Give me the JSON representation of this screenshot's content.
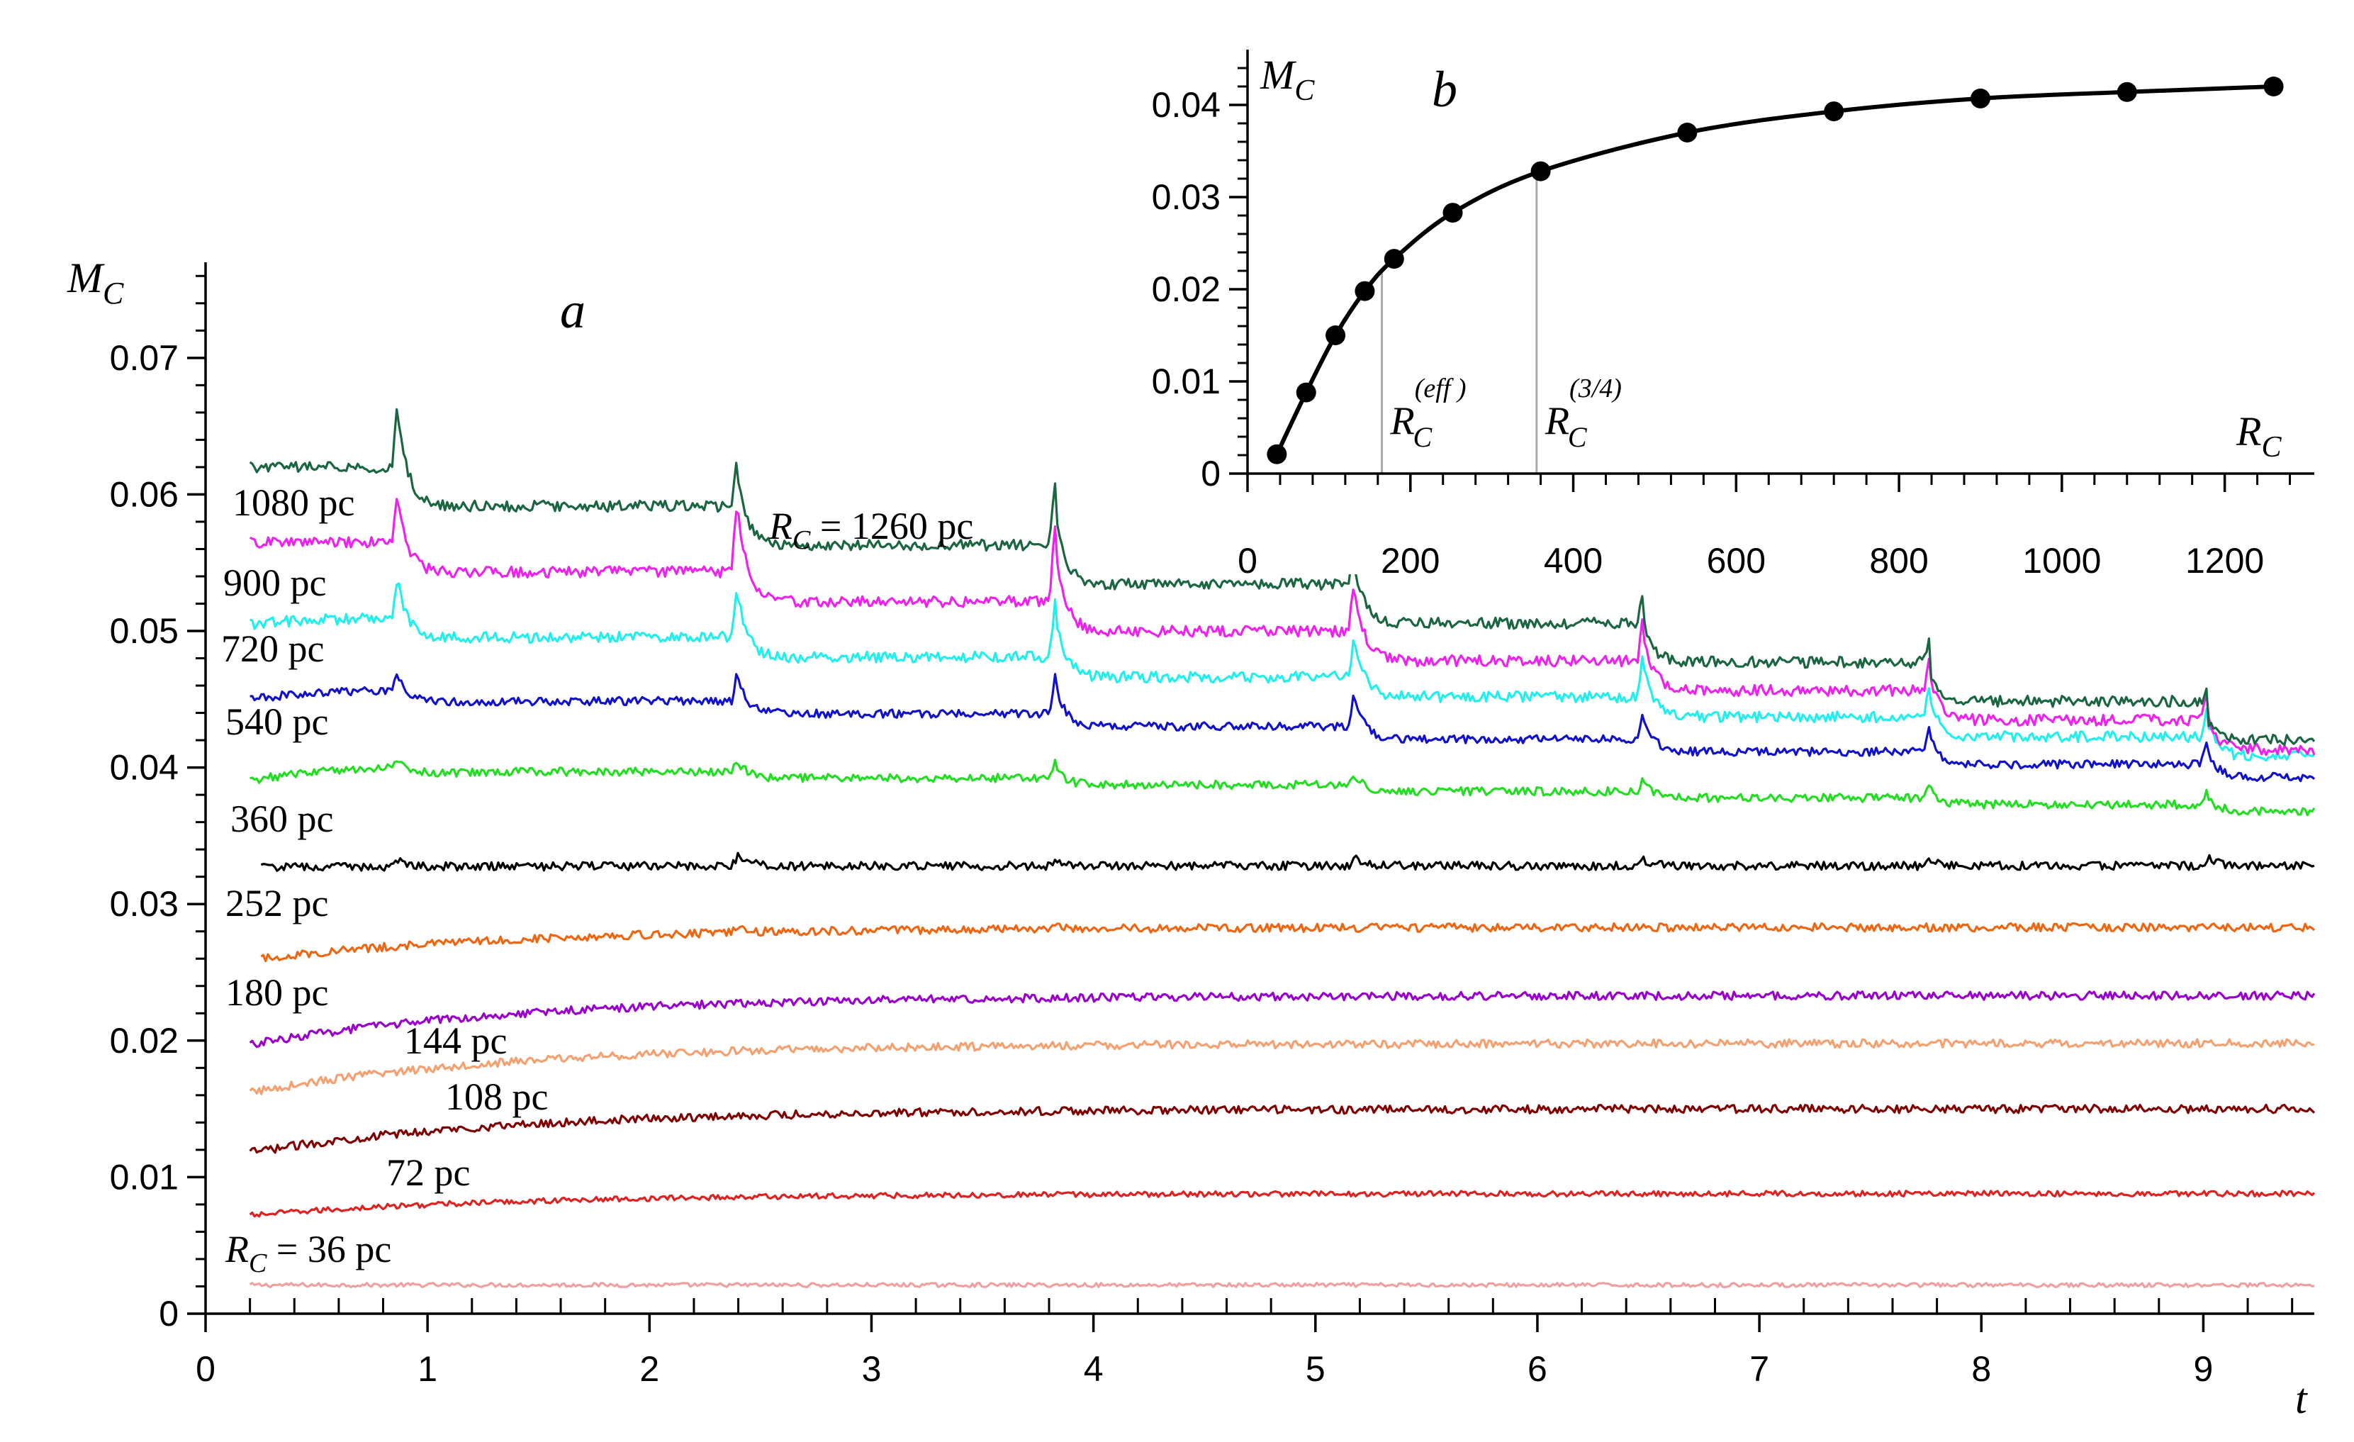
{
  "chart_data": [
    {
      "id": "a",
      "type": "line",
      "panel_label": "a",
      "title": "",
      "xlabel": "t",
      "ylabel": "M_C",
      "xlim": [
        0,
        9.5
      ],
      "ylim": [
        0,
        0.077
      ],
      "xticks": [
        "0",
        "1",
        "2",
        "3",
        "4",
        "5",
        "6",
        "7",
        "8",
        "9"
      ],
      "yticks": [
        "0",
        "0.01",
        "0.02",
        "0.03",
        "0.04",
        "0.05",
        "0.06",
        "0.07"
      ],
      "ytick_values": [
        0,
        0.01,
        0.02,
        0.03,
        0.04,
        0.05,
        0.06,
        0.07
      ],
      "xtick_values": [
        0,
        1,
        2,
        3,
        4,
        5,
        6,
        7,
        8,
        9
      ],
      "spike_times": [
        0.87,
        2.4,
        3.83,
        5.18,
        6.48,
        7.77,
        9.02
      ],
      "series": [
        {
          "name": "R_C = 36 pc",
          "label_text": "36 pc",
          "color": "#f0a0a0",
          "start": 0.0021,
          "end": 0.0021,
          "ramp": 0.0,
          "spikes": [
            0,
            0,
            0,
            0,
            0,
            0,
            0
          ],
          "noise": 0.00015,
          "t0": 0.2
        },
        {
          "name": "72 pc",
          "label_text": "72 pc",
          "color": "#dd2222",
          "start": 0.0072,
          "end": 0.0088,
          "ramp": 0.0008,
          "spikes": [
            0,
            0,
            0,
            0,
            0,
            0,
            0
          ],
          "noise": 0.0002,
          "t0": 0.2
        },
        {
          "name": "108 pc",
          "label_text": "108 pc",
          "color": "#800000",
          "start": 0.0118,
          "end": 0.015,
          "ramp": 0.0012,
          "spikes": [
            0,
            0,
            0,
            0,
            0,
            0,
            0
          ],
          "noise": 0.0003,
          "t0": 0.2
        },
        {
          "name": "144 pc",
          "label_text": "144 pc",
          "color": "#f4a070",
          "start": 0.0162,
          "end": 0.0198,
          "ramp": 0.002,
          "spikes": [
            0,
            0,
            0,
            0,
            0,
            0,
            0
          ],
          "noise": 0.0003,
          "t0": 0.2
        },
        {
          "name": "180 pc",
          "label_text": "180 pc",
          "color": "#9900cc",
          "start": 0.0197,
          "end": 0.0233,
          "ramp": 0.002,
          "spikes": [
            0,
            0,
            0,
            0,
            0,
            0,
            0
          ],
          "noise": 0.0003,
          "t0": 0.2
        },
        {
          "name": "252 pc",
          "label_text": "252 pc",
          "color": "#ee6611",
          "start": 0.026,
          "end": 0.0283,
          "ramp": 0.0015,
          "spikes": [
            0,
            0.0004,
            0.0004,
            0,
            0,
            0,
            0
          ],
          "noise": 0.0003,
          "t0": 0.25
        },
        {
          "name": "360 pc",
          "label_text": "360 pc",
          "color": "#000000",
          "start": 0.0327,
          "end": 0.0328,
          "ramp": 0.0012,
          "spikes": [
            0.0006,
            0.0008,
            0.0006,
            0.0006,
            0.0004,
            0.0004,
            0.0006
          ],
          "noise": 0.0003,
          "t0": 0.25
        },
        {
          "name": "540 pc",
          "label_text": "540 pc",
          "color": "#22dd22",
          "start": 0.0402,
          "end": 0.0368,
          "ramp": 0.0012,
          "spikes": [
            0.001,
            0.0012,
            0.0012,
            0.0011,
            0.0011,
            0.0011,
            0.001
          ],
          "noise": 0.0003,
          "t0": 0.2
        },
        {
          "name": "720 pc",
          "label_text": "720 pc",
          "color": "#1111cc",
          "start": 0.0458,
          "end": 0.0393,
          "ramp": 0.0008,
          "spikes": [
            0.002,
            0.0025,
            0.003,
            0.003,
            0.0025,
            0.002,
            0.0018
          ],
          "noise": 0.0003,
          "t0": 0.2
        },
        {
          "name": "900 pc",
          "label_text": "900 pc",
          "color": "#22eeee",
          "start": 0.051,
          "end": 0.0408,
          "ramp": 0.0005,
          "spikes": [
            0.004,
            0.0045,
            0.0045,
            0.004,
            0.0035,
            0.003,
            0.0025
          ],
          "noise": 0.0004,
          "t0": 0.2
        },
        {
          "name": "1080 pc",
          "label_text": "1080 pc",
          "color": "#ee22ee",
          "start": 0.0565,
          "end": 0.0413,
          "ramp": 0.0,
          "spikes": [
            0.005,
            0.0065,
            0.006,
            0.005,
            0.004,
            0.003,
            0.0025
          ],
          "noise": 0.0004,
          "t0": 0.2
        },
        {
          "name": "R_C = 1260 pc",
          "label_text": "1260 pc",
          "color": "#1a6640",
          "start": 0.062,
          "end": 0.042,
          "ramp": 0.0,
          "spikes": [
            0.0065,
            0.005,
            0.005,
            0.004,
            0.003,
            0.002,
            0.0015
          ],
          "noise": 0.0004,
          "t0": 0.2
        }
      ],
      "annotations": [
        {
          "text_prefix": "R",
          "sub": "C",
          "text_suffix": " = 1260 pc",
          "for": "R_C = 1260 pc"
        },
        {
          "text_prefix": "R",
          "sub": "C",
          "text_suffix": " = 36 pc",
          "for": "R_C = 36 pc"
        }
      ]
    },
    {
      "id": "b",
      "type": "line",
      "panel_label": "b",
      "title": "",
      "xlabel": "R_C",
      "ylabel": "M_C",
      "xlim": [
        0,
        1310
      ],
      "ylim": [
        0,
        0.046
      ],
      "xticks": [
        "0",
        "200",
        "400",
        "600",
        "800",
        "1000",
        "1200"
      ],
      "xtick_values": [
        0,
        200,
        400,
        600,
        800,
        1000,
        1200
      ],
      "yticks": [
        "0",
        "0.01",
        "0.02",
        "0.03",
        "0.04"
      ],
      "ytick_values": [
        0,
        0.01,
        0.02,
        0.03,
        0.04
      ],
      "x": [
        36,
        72,
        108,
        144,
        180,
        252,
        360,
        540,
        720,
        900,
        1080,
        1260
      ],
      "y": [
        0.0021,
        0.0088,
        0.015,
        0.0198,
        0.0233,
        0.0283,
        0.0328,
        0.037,
        0.0393,
        0.0407,
        0.0414,
        0.042
      ],
      "vlines": [
        {
          "x": 165,
          "label": "R_C^(eff)",
          "base": "R",
          "sub": "C",
          "sup": "(eff )"
        },
        {
          "x": 355,
          "label": "R_C^(3/4)",
          "base": "R",
          "sub": "C",
          "sup": "(3/4)"
        }
      ]
    }
  ]
}
